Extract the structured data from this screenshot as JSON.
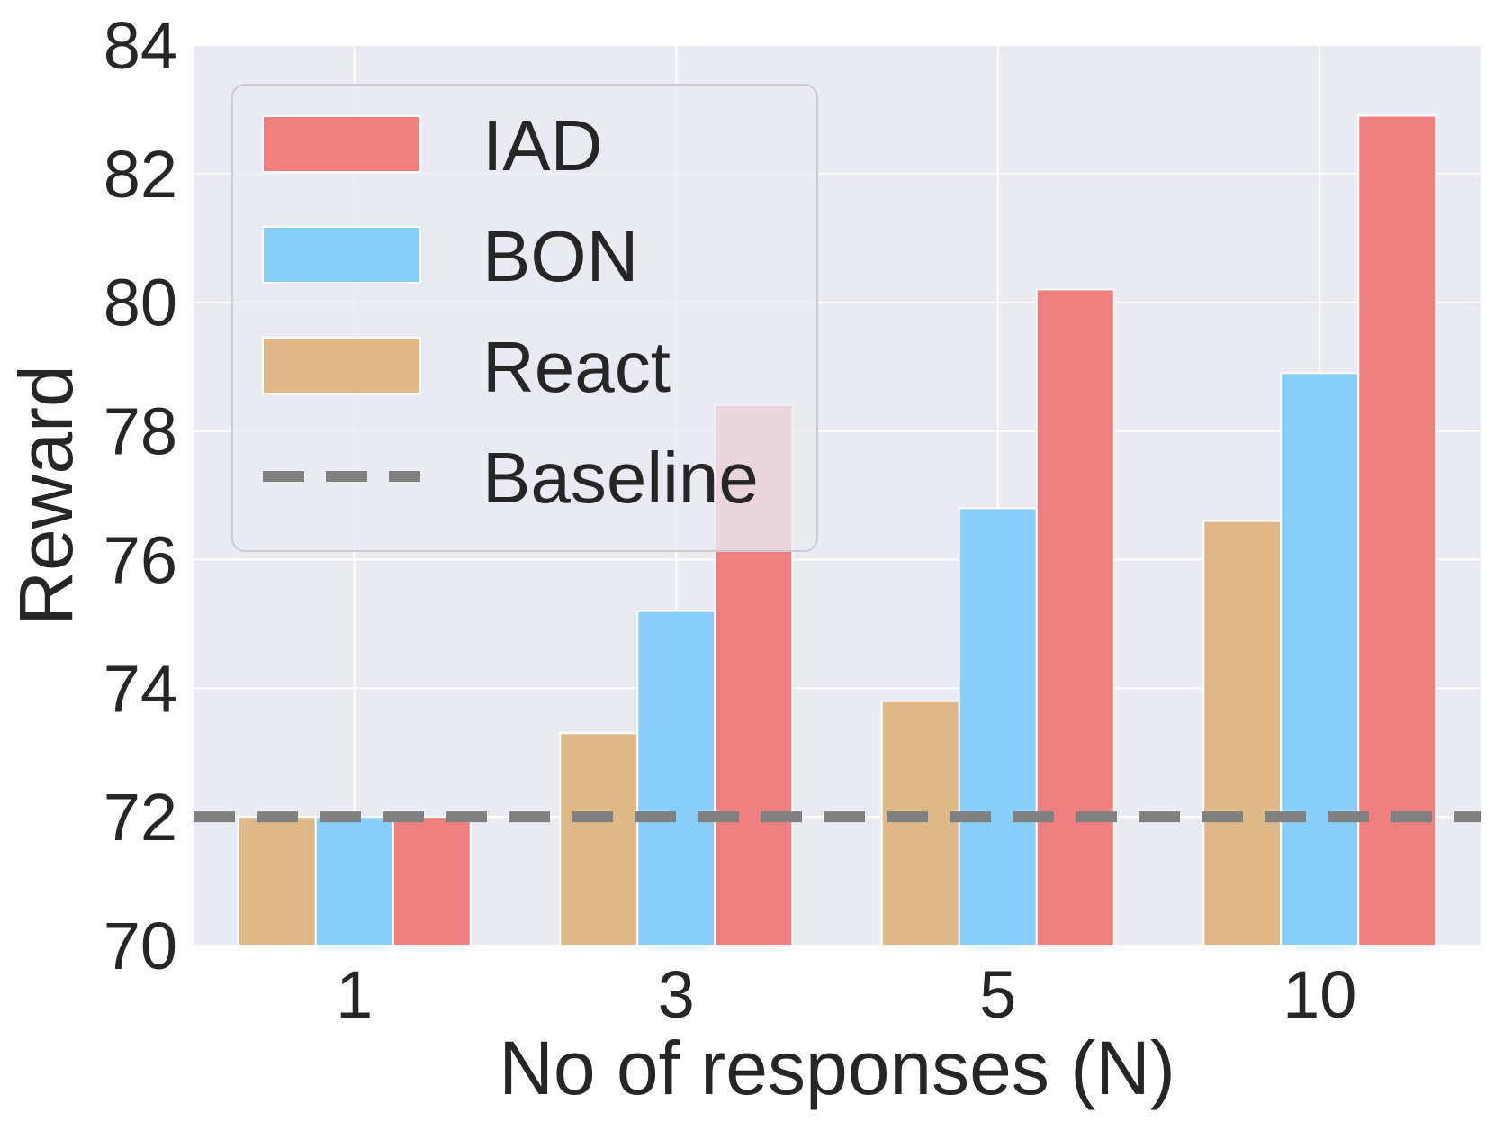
{
  "chart_data": {
    "type": "bar",
    "xlabel": "No of responses (N)",
    "ylabel": "Reward",
    "ylim": [
      70,
      84
    ],
    "yticks": [
      70,
      72,
      74,
      76,
      78,
      80,
      82,
      84
    ],
    "categories": [
      "1",
      "3",
      "5",
      "10"
    ],
    "grid": true,
    "legend_position": "top-left",
    "series": [
      {
        "name": "React",
        "color": "#DEB887",
        "values": [
          72.0,
          73.3,
          73.8,
          76.6
        ]
      },
      {
        "name": "BON",
        "color": "#87CEFA",
        "values": [
          72.0,
          75.2,
          76.8,
          78.9
        ]
      },
      {
        "name": "IAD",
        "color": "#F08080",
        "values": [
          72.0,
          78.4,
          80.2,
          82.9
        ]
      }
    ],
    "baseline": {
      "name": "Baseline",
      "value": 72.0,
      "color": "#808080",
      "style": "dashed"
    },
    "legend_order": [
      "IAD",
      "BON",
      "React",
      "Baseline"
    ]
  }
}
